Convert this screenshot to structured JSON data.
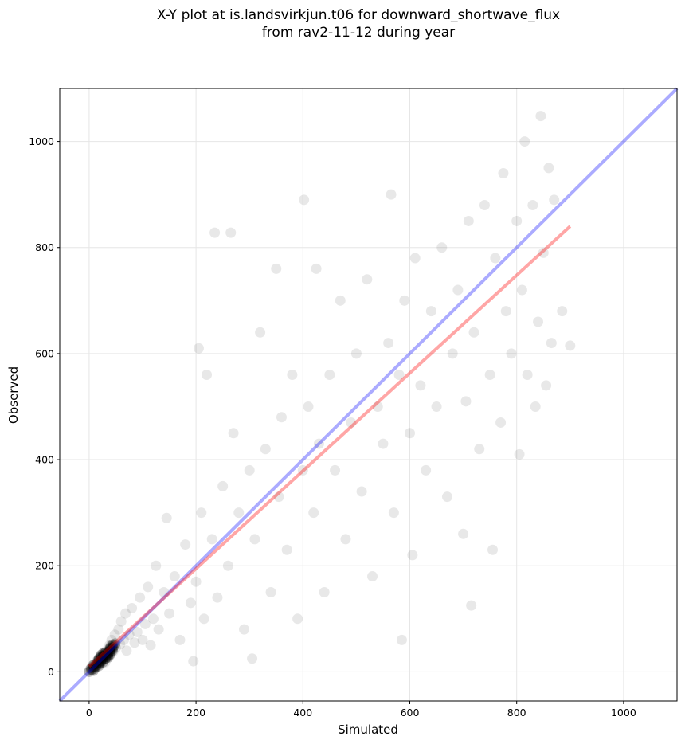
{
  "chart_data": {
    "type": "scatter",
    "title": [
      "X-Y plot at is.landsvirkjun.t06 for downward_shortwave_flux",
      "from rav2-11-12 during year"
    ],
    "xlabel": "Simulated",
    "ylabel": "Observed",
    "xlim": [
      -55,
      1100
    ],
    "ylim": [
      -55,
      1100
    ],
    "xticks": [
      "0",
      "200",
      "400",
      "600",
      "800",
      "1000"
    ],
    "yticks": [
      "0",
      "200",
      "400",
      "600",
      "800",
      "1000"
    ],
    "grid": true,
    "colors": {
      "points": "#000000",
      "identity_line": "#0000ff",
      "fit_line": "#ff0000"
    },
    "identity_line": {
      "x": [
        -55,
        1100
      ],
      "y": [
        -55,
        1100
      ]
    },
    "fit_line": {
      "x": [
        0,
        900
      ],
      "y": [
        10,
        840
      ]
    },
    "points": [
      [
        0,
        2
      ],
      [
        2,
        5
      ],
      [
        4,
        8
      ],
      [
        6,
        4
      ],
      [
        8,
        12
      ],
      [
        10,
        15
      ],
      [
        12,
        9
      ],
      [
        14,
        20
      ],
      [
        16,
        18
      ],
      [
        18,
        25
      ],
      [
        20,
        14
      ],
      [
        22,
        30
      ],
      [
        25,
        22
      ],
      [
        28,
        35
      ],
      [
        30,
        18
      ],
      [
        32,
        40
      ],
      [
        35,
        28
      ],
      [
        38,
        50
      ],
      [
        40,
        32
      ],
      [
        42,
        60
      ],
      [
        45,
        38
      ],
      [
        48,
        70
      ],
      [
        50,
        45
      ],
      [
        55,
        80
      ],
      [
        58,
        52
      ],
      [
        60,
        95
      ],
      [
        65,
        60
      ],
      [
        68,
        110
      ],
      [
        70,
        40
      ],
      [
        75,
        70
      ],
      [
        80,
        120
      ],
      [
        85,
        55
      ],
      [
        90,
        75
      ],
      [
        95,
        140
      ],
      [
        100,
        60
      ],
      [
        105,
        90
      ],
      [
        110,
        160
      ],
      [
        115,
        50
      ],
      [
        120,
        100
      ],
      [
        125,
        200
      ],
      [
        130,
        80
      ],
      [
        140,
        150
      ],
      [
        145,
        290
      ],
      [
        150,
        110
      ],
      [
        160,
        180
      ],
      [
        170,
        60
      ],
      [
        180,
        240
      ],
      [
        190,
        130
      ],
      [
        195,
        20
      ],
      [
        200,
        170
      ],
      [
        205,
        610
      ],
      [
        210,
        300
      ],
      [
        215,
        100
      ],
      [
        220,
        560
      ],
      [
        230,
        250
      ],
      [
        235,
        828
      ],
      [
        240,
        140
      ],
      [
        250,
        350
      ],
      [
        260,
        200
      ],
      [
        265,
        828
      ],
      [
        270,
        450
      ],
      [
        280,
        300
      ],
      [
        290,
        80
      ],
      [
        300,
        380
      ],
      [
        305,
        25
      ],
      [
        310,
        250
      ],
      [
        320,
        640
      ],
      [
        330,
        420
      ],
      [
        340,
        150
      ],
      [
        350,
        760
      ],
      [
        355,
        330
      ],
      [
        360,
        480
      ],
      [
        370,
        230
      ],
      [
        380,
        560
      ],
      [
        390,
        100
      ],
      [
        400,
        380
      ],
      [
        402,
        890
      ],
      [
        410,
        500
      ],
      [
        420,
        300
      ],
      [
        425,
        760
      ],
      [
        430,
        430
      ],
      [
        440,
        150
      ],
      [
        450,
        560
      ],
      [
        460,
        380
      ],
      [
        470,
        700
      ],
      [
        480,
        250
      ],
      [
        490,
        470
      ],
      [
        500,
        600
      ],
      [
        510,
        340
      ],
      [
        520,
        740
      ],
      [
        530,
        180
      ],
      [
        540,
        500
      ],
      [
        550,
        430
      ],
      [
        560,
        620
      ],
      [
        565,
        900
      ],
      [
        570,
        300
      ],
      [
        580,
        560
      ],
      [
        585,
        60
      ],
      [
        590,
        700
      ],
      [
        600,
        450
      ],
      [
        605,
        220
      ],
      [
        610,
        780
      ],
      [
        620,
        540
      ],
      [
        630,
        380
      ],
      [
        640,
        680
      ],
      [
        650,
        500
      ],
      [
        660,
        800
      ],
      [
        670,
        330
      ],
      [
        680,
        600
      ],
      [
        690,
        720
      ],
      [
        700,
        260
      ],
      [
        705,
        510
      ],
      [
        710,
        850
      ],
      [
        715,
        125
      ],
      [
        720,
        640
      ],
      [
        730,
        420
      ],
      [
        740,
        880
      ],
      [
        750,
        560
      ],
      [
        755,
        230
      ],
      [
        760,
        780
      ],
      [
        770,
        470
      ],
      [
        775,
        940
      ],
      [
        780,
        680
      ],
      [
        790,
        600
      ],
      [
        800,
        850
      ],
      [
        805,
        410
      ],
      [
        810,
        720
      ],
      [
        815,
        1000
      ],
      [
        820,
        560
      ],
      [
        830,
        880
      ],
      [
        835,
        500
      ],
      [
        840,
        660
      ],
      [
        845,
        1048
      ],
      [
        850,
        790
      ],
      [
        855,
        540
      ],
      [
        860,
        950
      ],
      [
        865,
        620
      ],
      [
        870,
        890
      ],
      [
        885,
        680
      ],
      [
        900,
        615
      ]
    ]
  }
}
